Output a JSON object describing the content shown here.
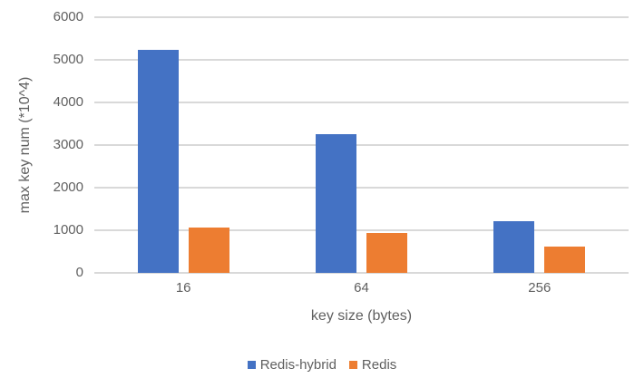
{
  "chart_data": {
    "type": "bar",
    "title": "",
    "categories": [
      "16",
      "64",
      "256"
    ],
    "series": [
      {
        "name": "Redis-hybrid",
        "color": "#4472C4",
        "values": [
          5230,
          3260,
          1210
        ]
      },
      {
        "name": "Redis",
        "color": "#ED7D31",
        "values": [
          1070,
          930,
          610
        ]
      }
    ],
    "xlabel": "key size (bytes)",
    "ylabel": "max key num (*10^4)",
    "ylim": [
      0,
      6000
    ],
    "ytick_step": 1000,
    "yticks": [
      "0",
      "1000",
      "2000",
      "3000",
      "4000",
      "5000",
      "6000"
    ],
    "grid": true,
    "legend_position": "bottom-center",
    "colors": {
      "gridline": "#D9D9D9",
      "axis_text": "#5F5F5F",
      "background": "#FFFFFF"
    }
  }
}
